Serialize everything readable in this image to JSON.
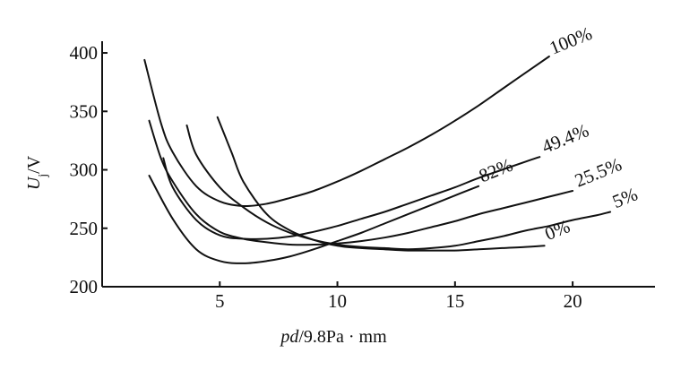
{
  "chart_data": {
    "type": "line",
    "xlabel_parts": [
      {
        "text": "pd",
        "italic": true
      },
      {
        "text": "/9.8Pa · mm",
        "italic": false
      }
    ],
    "ylabel_parts": [
      {
        "text": "U",
        "italic": true
      },
      {
        "text": "j",
        "italic": false,
        "sub": true
      },
      {
        "text": "/V",
        "italic": false
      }
    ],
    "xlim": [
      0,
      23.5
    ],
    "ylim": [
      200,
      410
    ],
    "x_ticks": [
      5,
      10,
      15,
      20
    ],
    "y_ticks": [
      200,
      250,
      300,
      350,
      400
    ],
    "grid": false,
    "legend": "labels at curve ends",
    "series": [
      {
        "name": "0%",
        "x": [
          4.9,
          5.5,
          6.0,
          7.0,
          8.0,
          9.0,
          10.0,
          11.0,
          12.0,
          13.0,
          14.0,
          15.0,
          16.0,
          17.0,
          18.0,
          18.8
        ],
        "y": [
          345,
          315,
          290,
          262,
          248,
          240,
          235,
          233,
          232,
          231,
          231,
          231,
          232,
          233,
          234,
          235
        ]
      },
      {
        "name": "5%",
        "x": [
          3.6,
          4.0,
          5.0,
          6.0,
          7.0,
          8.0,
          9.0,
          10.0,
          11.0,
          12.0,
          13.0,
          14.0,
          15.0,
          16.0,
          17.0,
          18.0,
          19.0,
          20.0,
          21.0,
          21.6
        ],
        "y": [
          338,
          313,
          285,
          268,
          255,
          246,
          240,
          236,
          234,
          233,
          232,
          233,
          235,
          239,
          243,
          248,
          252,
          257,
          261,
          264
        ]
      },
      {
        "name": "25.5%",
        "x": [
          2.0,
          2.5,
          3.0,
          4.0,
          5.0,
          6.0,
          7.0,
          8.0,
          9.0,
          10.0,
          11.0,
          12.0,
          13.0,
          14.0,
          15.0,
          16.0,
          17.0,
          18.0,
          19.0,
          20.0
        ],
        "y": [
          342,
          310,
          290,
          262,
          247,
          241,
          238,
          236,
          236,
          237,
          239,
          242,
          246,
          251,
          256,
          262,
          267,
          272,
          277,
          282
        ]
      },
      {
        "name": "49.4%",
        "x": [
          2.6,
          3.0,
          4.0,
          5.0,
          6.0,
          7.0,
          8.0,
          9.0,
          10.0,
          11.0,
          12.0,
          13.0,
          14.0,
          15.0,
          16.0,
          17.0,
          18.0,
          18.6
        ],
        "y": [
          310,
          285,
          257,
          244,
          241,
          241,
          243,
          247,
          252,
          258,
          264,
          271,
          278,
          285,
          293,
          300,
          307,
          311
        ]
      },
      {
        "name": "82%",
        "x": [
          2.0,
          3.0,
          4.0,
          5.0,
          6.0,
          7.0,
          8.0,
          9.0,
          10.0,
          11.0,
          12.0,
          13.0,
          14.0,
          15.0,
          16.0
        ],
        "y": [
          295,
          258,
          232,
          222,
          220,
          222,
          226,
          232,
          239,
          246,
          254,
          262,
          270,
          278,
          286
        ]
      },
      {
        "name": "100%",
        "x": [
          1.8,
          2.5,
          3.0,
          4.0,
          5.0,
          6.0,
          7.0,
          8.0,
          9.0,
          10.0,
          11.0,
          12.0,
          13.0,
          14.0,
          15.0,
          16.0,
          17.0,
          18.0,
          19.0
        ],
        "y": [
          394,
          340,
          315,
          286,
          273,
          269,
          271,
          276,
          282,
          290,
          299,
          309,
          319,
          330,
          342,
          355,
          369,
          383,
          397
        ]
      }
    ]
  }
}
